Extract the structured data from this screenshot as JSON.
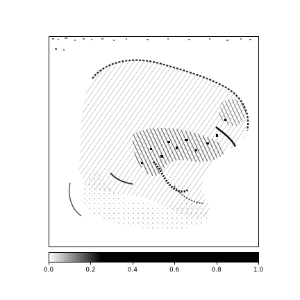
{
  "colorbar": {
    "ticks": [
      {
        "value": 0.0,
        "label": "0.0"
      },
      {
        "value": 0.2,
        "label": "0.2"
      },
      {
        "value": 0.4,
        "label": "0.4"
      },
      {
        "value": 0.6,
        "label": "0.6"
      },
      {
        "value": 0.8,
        "label": "0.8"
      },
      {
        "value": 1.0,
        "label": "1.0"
      }
    ],
    "range": [
      0,
      1
    ],
    "colormap": "binary",
    "colors": {
      "low": "#ffffff",
      "high": "#000000"
    }
  },
  "heatmap": {
    "subject": "animal-silhouette-edge-map",
    "background_color": "#ffffff",
    "ink_color": "#000000"
  }
}
